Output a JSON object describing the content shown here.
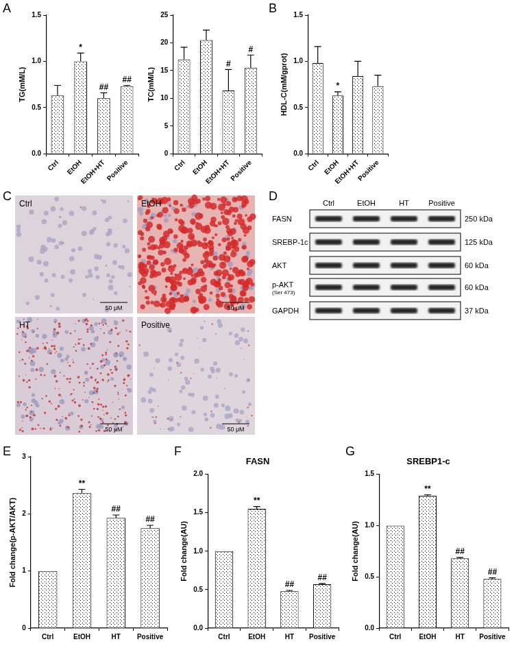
{
  "chart_data": [
    {
      "panel": "A",
      "type": "bar",
      "y_label": "TG(mM/L)",
      "categories": [
        "Ctrl",
        "EtOH",
        "EtOH+HT",
        "Positive"
      ],
      "values": [
        0.63,
        1.0,
        0.6,
        0.73
      ],
      "errors": [
        0.11,
        0.09,
        0.06,
        0.01
      ],
      "annotations": [
        null,
        "*",
        "##",
        "##"
      ],
      "color": "#000000",
      "grid": false,
      "ylim": [
        0,
        1.5
      ],
      "yticks": [
        {
          "value": 0,
          "label": "0.0"
        },
        0.5,
        {
          "value": 1,
          "label": "1.0"
        },
        1.5
      ]
    },
    {
      "type": "bar",
      "y_label": "TC(mM/L)",
      "categories": [
        "Ctrl",
        "EtOH",
        "EtOH+HT",
        "Positive"
      ],
      "values": [
        17,
        20.5,
        11.4,
        15.5
      ],
      "errors": [
        2.2,
        1.8,
        3.8,
        2.3
      ],
      "annotations": [
        null,
        null,
        "#",
        "#"
      ],
      "color": "#000000",
      "grid": false,
      "ylim": [
        0,
        25
      ],
      "yticks": [
        0,
        5,
        10,
        15,
        20,
        25
      ]
    },
    {
      "panel": "B",
      "type": "bar",
      "y_label": "HDL-C(mM/gprot)",
      "categories": [
        "Ctrl",
        "EtOH",
        "EtOH+HT",
        "Positive"
      ],
      "values": [
        0.98,
        0.63,
        0.84,
        0.73
      ],
      "errors": [
        0.18,
        0.04,
        0.16,
        0.12
      ],
      "annotations": [
        null,
        "*",
        null,
        null
      ],
      "color": "#000000",
      "grid": false,
      "ylim": [
        0,
        1.5
      ],
      "yticks": [
        {
          "value": 0,
          "label": "0.0"
        },
        0.5,
        {
          "value": 1,
          "label": "1.0"
        },
        1.5
      ]
    },
    {
      "panel": "E",
      "type": "bar",
      "y_label": "Fold change(p-AKT/AKT)",
      "categories": [
        "Ctrl",
        "EtOH",
        "HT",
        "Positive"
      ],
      "values": [
        1,
        2.36,
        1.93,
        1.75
      ],
      "errors": [
        0,
        0.07,
        0.05,
        0.05
      ],
      "annotations": [
        null,
        "**",
        "##",
        "##"
      ],
      "color": "#000000",
      "grid": false,
      "ylim": [
        0,
        3
      ],
      "yticks": [
        0,
        1,
        2,
        3
      ]
    },
    {
      "panel": "F",
      "type": "bar",
      "title": "FASN",
      "y_label": "Fold change(AU)",
      "categories": [
        "Ctrl",
        "EtOH",
        "HT",
        "Positive"
      ],
      "values": [
        1,
        1.55,
        0.48,
        0.57
      ],
      "errors": [
        0,
        0.03,
        0.01,
        0.01
      ],
      "annotations": [
        null,
        "**",
        "##",
        "##"
      ],
      "color": "#000000",
      "grid": false,
      "ylim": [
        0,
        2
      ],
      "yticks": [
        {
          "value": 0,
          "label": "0.0"
        },
        0.5,
        {
          "value": 1,
          "label": "1.0"
        },
        1.5,
        {
          "value": 2,
          "label": "2.0"
        }
      ]
    },
    {
      "panel": "G",
      "type": "bar",
      "title": "SREBP1-c",
      "y_label": "Fold change(AU)",
      "categories": [
        "Ctrl",
        "EtOH",
        "HT",
        "Positive"
      ],
      "values": [
        1,
        1.29,
        0.68,
        0.48
      ],
      "errors": [
        0,
        0.01,
        0.01,
        0.01
      ],
      "annotations": [
        null,
        "**",
        "##",
        "##"
      ],
      "color": "#000000",
      "grid": false,
      "ylim": [
        0,
        1.5
      ],
      "yticks": [
        {
          "value": 0,
          "label": "0.0"
        },
        0.5,
        {
          "value": 1,
          "label": "1.0"
        },
        1.5
      ]
    }
  ],
  "panel_C": {
    "panel": "C",
    "images": [
      {
        "label": "Ctrl",
        "scale_bar": "50 μM"
      },
      {
        "label": "EtOH",
        "scale_bar": "50 μM"
      },
      {
        "label": "HT",
        "scale_bar": "50 μM"
      },
      {
        "label": "Positive",
        "scale_bar": "50 μM"
      }
    ]
  },
  "panel_D": {
    "panel": "D",
    "lanes": [
      "Ctrl",
      "EtOH",
      "HT",
      "Positive"
    ],
    "rows": [
      {
        "label": "FASN",
        "kda": "250 kDa"
      },
      {
        "label": "SREBP-1c",
        "kda": "125 kDa"
      },
      {
        "label": "AKT",
        "kda": "60 kDa"
      },
      {
        "label": "p-AKT",
        "sublabel": "(Ser 473)",
        "kda": "60 kDa"
      },
      {
        "label": "GAPDH",
        "kda": "37 kDa"
      }
    ]
  }
}
